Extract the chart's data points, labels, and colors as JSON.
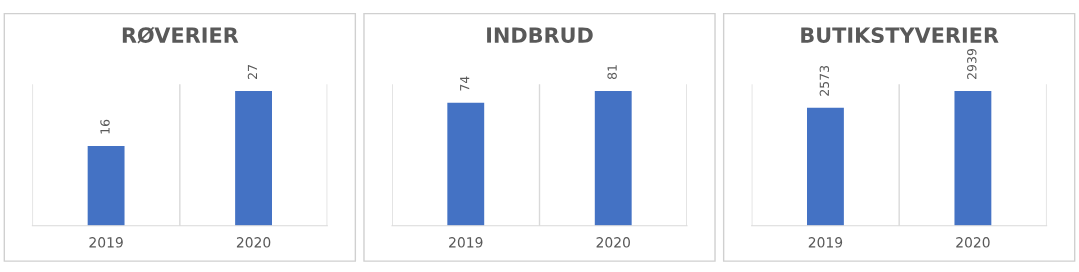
{
  "chart_data": [
    {
      "type": "bar",
      "title": "RØVERIER",
      "categories": [
        "2019",
        "2020"
      ],
      "values": [
        16,
        27
      ],
      "color": "#4472c4",
      "data_labels": true,
      "grid": "x"
    },
    {
      "type": "bar",
      "title": "INDBRUD",
      "categories": [
        "2019",
        "2020"
      ],
      "values": [
        74,
        81
      ],
      "color": "#4472c4",
      "data_labels": true,
      "grid": "x"
    },
    {
      "type": "bar",
      "title": "BUTIKSTYVERIER",
      "categories": [
        "2019",
        "2020"
      ],
      "values": [
        2573,
        2939
      ],
      "color": "#4472c4",
      "data_labels": true,
      "grid": "x"
    }
  ]
}
